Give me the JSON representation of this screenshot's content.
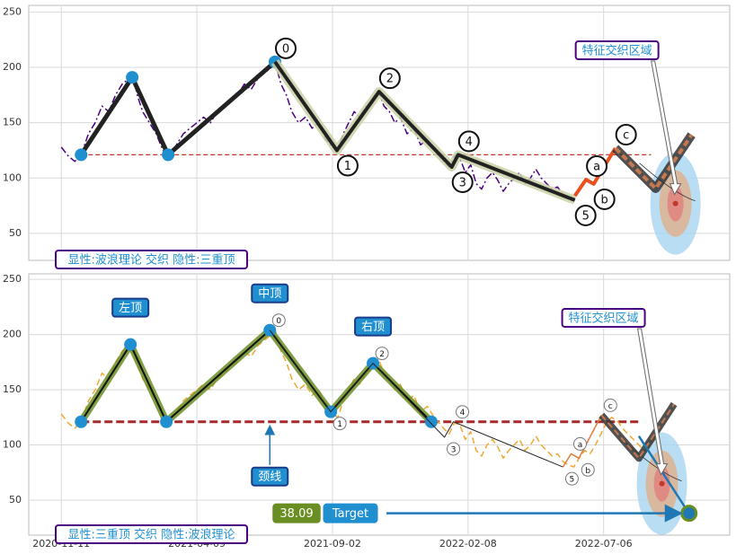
{
  "chart_data": [
    {
      "type": "line",
      "xlim": [
        -24,
        493
      ],
      "ylim": [
        25.6,
        256
      ],
      "yticks": [
        50,
        100,
        150,
        200,
        250
      ],
      "grid": true,
      "caption": "显性:波浪理论 交织 隐性:三重顶",
      "zone_label": "特征交织区域",
      "zone": {
        "x": 453,
        "y": 77
      },
      "neckline": 121,
      "neckline_x": [
        14.6,
        435
      ],
      "neckline_color": "#c0392b",
      "series": [
        {
          "color": "#4b0082",
          "width": 1.5,
          "dash": "dashdot",
          "x": [
            0,
            5,
            10,
            15,
            20,
            25,
            30,
            35,
            40,
            45,
            50,
            53,
            56,
            60,
            65,
            70,
            75,
            79,
            85,
            90,
            95,
            100,
            105,
            110,
            115,
            120,
            125,
            130,
            135,
            140,
            145,
            150,
            155,
            158,
            162,
            166,
            170,
            175,
            180,
            185,
            190,
            195,
            200,
            204,
            208,
            212,
            216,
            220,
            225,
            230,
            234,
            238,
            242,
            246,
            250,
            255,
            260,
            265,
            270,
            275,
            278,
            282,
            286,
            290,
            294,
            298,
            302,
            306,
            310,
            314,
            318,
            322,
            326,
            330,
            334,
            338,
            342,
            346,
            350,
            354,
            358,
            362,
            366,
            370,
            374,
            378
          ],
          "values": [
            128,
            120,
            115,
            122,
            140,
            150,
            165,
            160,
            175,
            185,
            190,
            192,
            175,
            160,
            150,
            140,
            125,
            121,
            130,
            140,
            145,
            150,
            155,
            150,
            160,
            165,
            170,
            175,
            185,
            180,
            190,
            195,
            200,
            203,
            185,
            175,
            160,
            150,
            155,
            145,
            150,
            135,
            128,
            125,
            140,
            150,
            160,
            155,
            165,
            170,
            178,
            165,
            160,
            150,
            155,
            140,
            145,
            130,
            135,
            125,
            121,
            115,
            110,
            120,
            118,
            105,
            112,
            95,
            90,
            100,
            105,
            98,
            88,
            95,
            100,
            105,
            95,
            100,
            108,
            100,
            95,
            90,
            92,
            85,
            82,
            80
          ]
        },
        {
          "color": "#222222",
          "width": 5,
          "marker": "#1f8fd0",
          "x": [
            14.6,
            52.3,
            78.8,
            157.6
          ],
          "values": [
            121,
            191,
            121,
            205
          ]
        },
        {
          "color": "#222222",
          "width": 4,
          "halo": "#c9d1a6",
          "label_style": "circle-large",
          "x": [
            157.6,
            203.3,
            234.4,
            288,
            292.7,
            378.8
          ],
          "values": [
            205,
            125,
            178,
            110,
            121,
            80
          ],
          "labels": [
            "0",
            "1",
            "2",
            "3",
            "4",
            "5"
          ]
        },
        {
          "color": "#e8501e",
          "width": 4,
          "label_style": "circle-large",
          "x": [
            378.8,
            387,
            392.7,
            408.6
          ],
          "values": [
            84,
            98.6,
            94.6,
            127
          ],
          "labels": [
            null,
            "a",
            "b",
            "c"
          ]
        },
        {
          "color": "#c87850",
          "width": 4,
          "dash": "dashed",
          "halo": "#333333",
          "x": [
            408.6,
            438.4,
            464.9
          ],
          "values": [
            127,
            90.5,
            139
          ]
        }
      ]
    },
    {
      "type": "line",
      "xlim": [
        -24,
        493
      ],
      "ylim": [
        18.3,
        255
      ],
      "yticks": [
        50,
        100,
        150,
        200,
        250
      ],
      "grid": true,
      "xticks": [
        {
          "value": 0,
          "label": "2020-11-11"
        },
        {
          "value": 100,
          "label": "2021-04-09"
        },
        {
          "value": 200,
          "label": "2021-09-02"
        },
        {
          "value": 300,
          "label": "2022-02-08"
        },
        {
          "value": 400,
          "label": "2022-07-06"
        }
      ],
      "caption": "显性:三重顶 交织 隐性:波浪理论",
      "zone_label": "特征交织区域",
      "zone": {
        "x": 443,
        "y": 65
      },
      "neckline": 121,
      "neckline_x": [
        14.6,
        426
      ],
      "neckline_color": "#a52a2a",
      "neckline_label": "颈线",
      "target_label": "Target",
      "series": [
        {
          "color": "#f0a830",
          "width": 1.5,
          "dash": "dashed",
          "x": [
            0,
            5,
            10,
            15,
            20,
            25,
            30,
            35,
            40,
            45,
            50,
            53,
            56,
            60,
            65,
            70,
            75,
            79,
            85,
            90,
            95,
            100,
            105,
            110,
            115,
            120,
            125,
            130,
            135,
            140,
            145,
            150,
            155,
            158,
            162,
            166,
            170,
            175,
            180,
            185,
            190,
            195,
            200,
            204,
            208,
            212,
            216,
            220,
            225,
            230,
            234,
            238,
            242,
            246,
            250,
            255,
            260,
            265,
            270,
            275,
            278,
            282,
            286,
            290,
            294,
            298,
            302,
            306,
            310,
            314,
            318,
            322,
            326,
            330,
            334,
            338,
            342,
            346,
            350,
            354,
            358,
            362,
            366,
            370,
            374,
            378,
            382,
            386,
            390,
            394,
            398,
            402,
            406,
            410,
            414,
            418,
            422,
            426,
            430,
            434,
            438
          ],
          "values": [
            128,
            120,
            115,
            122,
            140,
            150,
            165,
            160,
            175,
            185,
            190,
            192,
            175,
            160,
            150,
            140,
            125,
            121,
            130,
            140,
            145,
            150,
            155,
            150,
            160,
            165,
            170,
            175,
            185,
            180,
            190,
            195,
            200,
            203,
            185,
            175,
            160,
            150,
            155,
            145,
            150,
            135,
            128,
            125,
            140,
            150,
            160,
            155,
            165,
            170,
            178,
            165,
            160,
            150,
            155,
            140,
            145,
            130,
            135,
            125,
            121,
            115,
            110,
            120,
            118,
            105,
            112,
            95,
            90,
            100,
            105,
            98,
            88,
            95,
            100,
            105,
            95,
            100,
            108,
            100,
            95,
            90,
            92,
            85,
            82,
            80,
            88,
            95,
            92,
            100,
            110,
            120,
            125,
            122,
            115,
            110,
            105,
            100,
            95,
            100,
            105
          ]
        },
        {
          "color": "#111111",
          "width": 2,
          "halo": "#6b8e23",
          "marker": "#1f8fd0",
          "label_style": "box",
          "x": [
            14.6,
            51,
            77.5,
            153.8,
            198.8,
            229.9,
            272.9
          ],
          "values": [
            121,
            191,
            121,
            204,
            130,
            174,
            121
          ],
          "labels": [
            null,
            "左顶",
            null,
            "中顶",
            null,
            "右顶",
            null
          ]
        },
        {
          "color": "#222222",
          "width": 1,
          "label_style": "circle-small",
          "x": [
            153.8,
            198.8,
            229.9,
            282.6,
            289.2,
            370
          ],
          "values": [
            204,
            130,
            174,
            107,
            121,
            80
          ],
          "labels": [
            "0",
            "1",
            "2",
            "3",
            "4",
            "5"
          ]
        },
        {
          "color": "#e07b39",
          "width": 1.5,
          "label_style": "circle-small",
          "x": [
            370,
            376,
            381.8,
            398.4
          ],
          "values": [
            80,
            92,
            88,
            127
          ],
          "labels": [
            null,
            "a",
            "b",
            "c"
          ]
        },
        {
          "color": "#c87850",
          "width": 2,
          "dash": "dashed",
          "halo": "#333333",
          "x": [
            398.4,
            426,
            452
          ],
          "values": [
            127,
            88,
            137
          ]
        },
        {
          "color": "#1f77b4",
          "width": 2.5,
          "x": [
            426,
            463
          ],
          "values": [
            108,
            38.09
          ]
        }
      ]
    }
  ]
}
